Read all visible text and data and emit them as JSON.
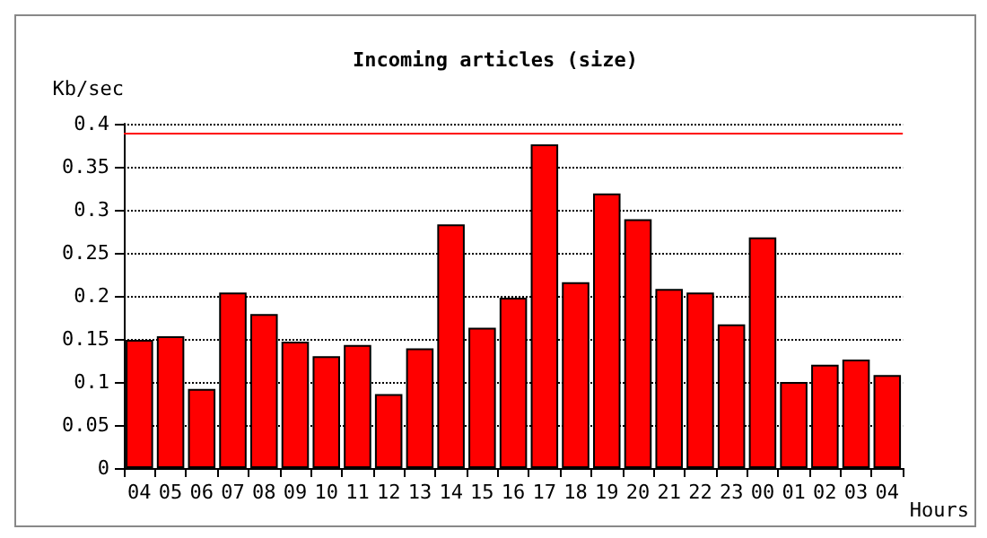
{
  "chart_data": {
    "type": "bar",
    "title": "Incoming articles (size)",
    "xlabel": "Hours",
    "ylabel": "Kb/sec",
    "categories": [
      "04",
      "05",
      "06",
      "07",
      "08",
      "09",
      "10",
      "11",
      "12",
      "13",
      "14",
      "15",
      "16",
      "17",
      "18",
      "19",
      "20",
      "21",
      "22",
      "23",
      "00",
      "01",
      "02",
      "03",
      "04"
    ],
    "series": [
      {
        "color": "#ff0000",
        "values": [
          0.149,
          0.153,
          0.092,
          0.204,
          0.179,
          0.147,
          0.13,
          0.143,
          0.086,
          0.139,
          0.283,
          0.163,
          0.198,
          0.376,
          0.216,
          0.319,
          0.289,
          0.208,
          0.204,
          0.167,
          0.268,
          0.1,
          0.12,
          0.126,
          0.108
        ]
      }
    ],
    "ylim": [
      0,
      0.4
    ],
    "yticks": [
      0,
      0.05,
      0.1,
      0.15,
      0.2,
      0.25,
      0.3,
      0.35,
      0.4
    ],
    "grid": "y",
    "ref_lines": [
      {
        "axis": "y",
        "value": 0.39,
        "color": "#ff0000",
        "line_style": "solid"
      }
    ]
  }
}
